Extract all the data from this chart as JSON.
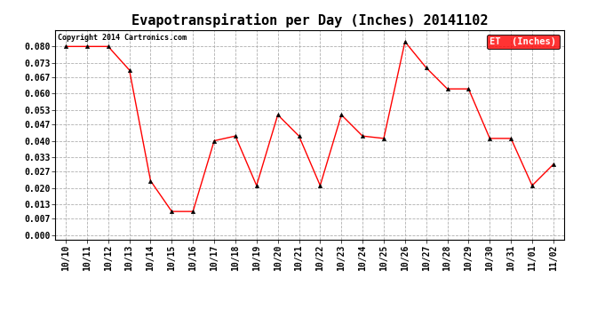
{
  "title": "Evapotranspiration per Day (Inches) 20141102",
  "x_labels": [
    "10/10",
    "10/11",
    "10/12",
    "10/13",
    "10/14",
    "10/15",
    "10/16",
    "10/17",
    "10/18",
    "10/19",
    "10/20",
    "10/21",
    "10/22",
    "10/23",
    "10/24",
    "10/25",
    "10/26",
    "10/27",
    "10/28",
    "10/29",
    "10/30",
    "10/31",
    "11/01",
    "11/02"
  ],
  "y_values": [
    0.08,
    0.08,
    0.08,
    0.07,
    0.023,
    0.01,
    0.01,
    0.04,
    0.042,
    0.021,
    0.051,
    0.042,
    0.021,
    0.051,
    0.042,
    0.041,
    0.082,
    0.071,
    0.062,
    0.062,
    0.041,
    0.041,
    0.021,
    0.03
  ],
  "line_color": "#ff0000",
  "marker": "^",
  "marker_color": "#000000",
  "marker_size": 3,
  "legend_label": "ET  (Inches)",
  "legend_bg": "#ff0000",
  "legend_text_color": "#ffffff",
  "copyright_text": "Copyright 2014 Cartronics.com",
  "copyright_color": "#000000",
  "y_ticks": [
    0.0,
    0.007,
    0.013,
    0.02,
    0.027,
    0.033,
    0.04,
    0.047,
    0.053,
    0.06,
    0.067,
    0.073,
    0.08
  ],
  "background_color": "#ffffff",
  "grid_color": "#b0b0b0",
  "title_fontsize": 11,
  "tick_fontsize": 7,
  "copyright_fontsize": 6,
  "legend_fontsize": 7.5
}
